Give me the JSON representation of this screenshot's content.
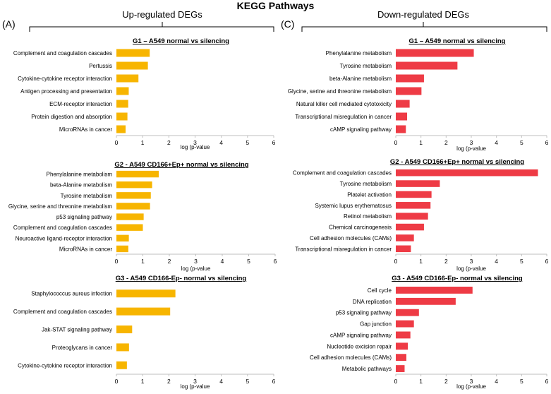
{
  "figure": {
    "title": "KEGG Pathways",
    "left_heading": "Up-regulated DEGs",
    "right_heading": "Down-regulated DEGs",
    "left_label": "(A)",
    "right_label": "(C)"
  },
  "colors": {
    "up": "#F7B500",
    "down": "#EE3B45",
    "axis": "#000000",
    "gridtick": "#333333"
  },
  "chart_data": [
    {
      "id": "up-g1",
      "type": "bar",
      "orientation": "horizontal",
      "title": "G1 – A549 normal vs silencing",
      "xlabel": "log (p-value",
      "xlim": [
        0,
        6
      ],
      "xticks": [
        0,
        1,
        2,
        3,
        4,
        5,
        6
      ],
      "categories": [
        "Complement and coagulation cascades",
        "Pertussis",
        "Cytokine-cytokine receptor interaction",
        "Antigen processing and presentation",
        "ECM-receptor interaction",
        "Protein digestion and absorption",
        "MicroRNAs in cancer"
      ],
      "values": [
        1.27,
        1.2,
        0.84,
        0.47,
        0.45,
        0.42,
        0.35
      ]
    },
    {
      "id": "up-g2",
      "type": "bar",
      "orientation": "horizontal",
      "title": "G2 - A549 CD166+Ep+ normal vs silencing",
      "xlabel": "log (p-value",
      "xlim": [
        0,
        6
      ],
      "xticks": [
        0,
        1,
        2,
        3,
        4,
        5,
        6
      ],
      "categories": [
        "Phenylalanine metabolism",
        "beta-Alanine metabolism",
        "Tyrosine metabolism",
        "Glycine, serine and threonine metabolism",
        "p53 signaling pathway",
        "Complement and coagulation cascades",
        "Neuroactive ligand-receptor interaction",
        "MicroRNAs in cancer"
      ],
      "values": [
        1.6,
        1.35,
        1.3,
        1.27,
        1.03,
        1.0,
        0.47,
        0.45
      ]
    },
    {
      "id": "up-g3",
      "type": "bar",
      "orientation": "horizontal",
      "title": "G3 - A549 CD166-Ep- normal vs silencing",
      "xlabel": "log (p-value",
      "xlim": [
        0,
        6
      ],
      "xticks": [
        0,
        1,
        2,
        3,
        4,
        5,
        6
      ],
      "categories": [
        "Staphylococcus aureus infection",
        "Complement and coagulation cascades",
        "Jak-STAT signaling pathway",
        "Proteoglycans in cancer",
        "Cytokine-cytokine receptor interaction"
      ],
      "values": [
        2.25,
        2.05,
        0.6,
        0.48,
        0.4
      ]
    },
    {
      "id": "down-g1",
      "type": "bar",
      "orientation": "horizontal",
      "title": "G1 – A549 normal vs silencing",
      "xlabel": "log (p-value",
      "xlim": [
        0,
        6
      ],
      "xticks": [
        0,
        1,
        2,
        3,
        4,
        5,
        6
      ],
      "categories": [
        "Phenylalanine metabolism",
        "Tyrosine metabolism",
        "beta-Alanine metabolism",
        "Glycine, serine and threonine metabolism",
        "Natural killer cell mediated cytotoxicity",
        "Transcriptional misregulation in cancer",
        "cAMP signaling pathway"
      ],
      "values": [
        3.1,
        2.45,
        1.12,
        1.02,
        0.55,
        0.45,
        0.4
      ]
    },
    {
      "id": "down-g2",
      "type": "bar",
      "orientation": "horizontal",
      "title": "G2 - A549 CD166+Ep+ normal vs silencing",
      "xlabel": "log (p-value",
      "xlim": [
        0,
        6
      ],
      "xticks": [
        0,
        1,
        2,
        3,
        4,
        5,
        6
      ],
      "categories": [
        "Complement and coagulation cascades",
        "Tyrosine metabolism",
        "Platelet activation",
        "Systemic lupus erythematosus",
        "Retinol metabolism",
        "Chemical carcinogenesis",
        "Cell adhesion molecules (CAMs)",
        "Transcriptional misregulation in cancer"
      ],
      "values": [
        5.65,
        1.75,
        1.42,
        1.38,
        1.28,
        1.12,
        0.72,
        0.6
      ]
    },
    {
      "id": "down-g3",
      "type": "bar",
      "orientation": "horizontal",
      "title": "G3 - A549 CD166-Ep- normal vs silencing",
      "xlabel": "log (p-value",
      "xlim": [
        0,
        6
      ],
      "xticks": [
        0,
        1,
        2,
        3,
        4,
        5,
        6
      ],
      "categories": [
        "Cell cycle",
        "DNA replication",
        "p53 signaling pathway",
        "Gap junction",
        "cAMP signaling pathway",
        "Nucleotide excision repair",
        "Cell adhesion molecules (CAMs)",
        "Metabolic pathways"
      ],
      "values": [
        3.05,
        2.38,
        0.92,
        0.72,
        0.58,
        0.48,
        0.42,
        0.35
      ]
    }
  ]
}
